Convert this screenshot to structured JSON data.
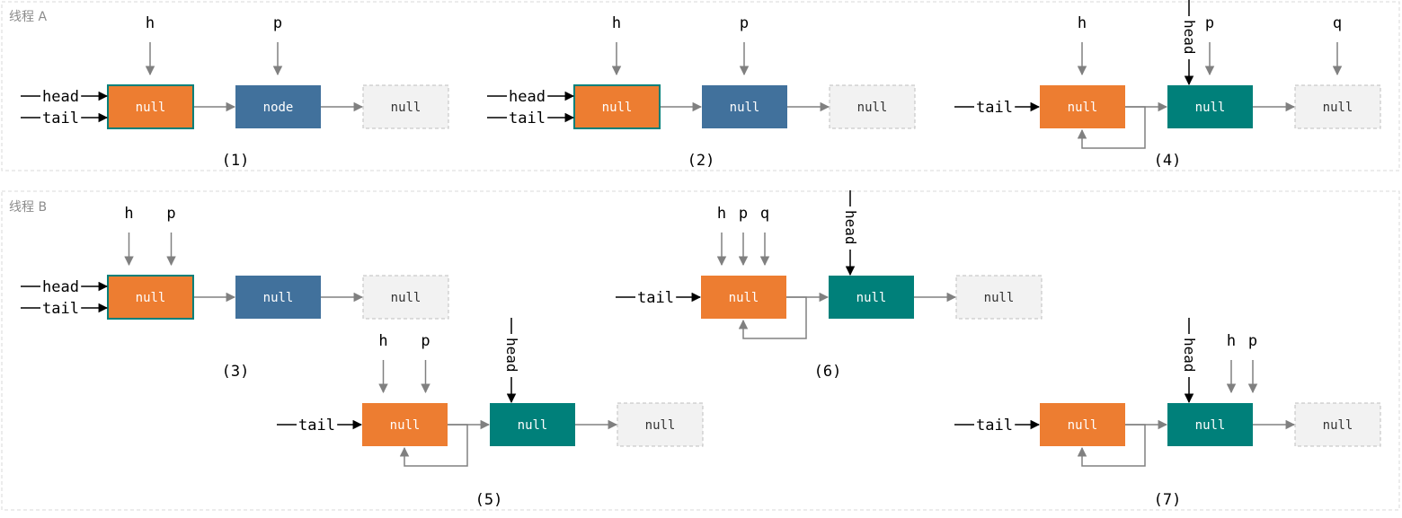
{
  "colors": {
    "orange": "#ed7d31",
    "blue": "#41719c",
    "teal": "#00807a",
    "gray_box": "#f2f2f2",
    "gray_border": "#bfbfbf",
    "connector": "#808080",
    "pointer": "#000000",
    "panel_border": "#d9d9d9",
    "label": "#8c8c8c"
  },
  "icons": [
    "pointer-arrow-icon",
    "self-loop-arrow-icon",
    "next-arrow-icon"
  ],
  "panels": [
    {
      "label": "线程 A"
    },
    {
      "label": "线程 B"
    }
  ],
  "states": [
    {
      "caption": "(1)",
      "nodes": [
        {
          "text": "null",
          "color": "orange",
          "outlined": true
        },
        {
          "text": "node",
          "color": "blue"
        },
        {
          "text": "null",
          "color": "gray"
        }
      ],
      "top_pointers": [
        {
          "text": "h",
          "node": 0
        },
        {
          "text": "p",
          "node": 1
        }
      ],
      "left_pointers": [
        "head",
        "tail"
      ],
      "vertical_head": null,
      "self_loop": false
    },
    {
      "caption": "(2)",
      "nodes": [
        {
          "text": "null",
          "color": "orange",
          "outlined": true
        },
        {
          "text": "null",
          "color": "blue"
        },
        {
          "text": "null",
          "color": "gray"
        }
      ],
      "top_pointers": [
        {
          "text": "h",
          "node": 0
        },
        {
          "text": "p",
          "node": 1
        }
      ],
      "left_pointers": [
        "head",
        "tail"
      ],
      "vertical_head": null,
      "self_loop": false
    },
    {
      "caption": "(4)",
      "nodes": [
        {
          "text": "null",
          "color": "orange"
        },
        {
          "text": "null",
          "color": "teal"
        },
        {
          "text": "null",
          "color": "gray"
        }
      ],
      "top_pointers": [
        {
          "text": "h",
          "node": 0
        },
        {
          "text": "p",
          "node": 1
        },
        {
          "text": "q",
          "node": 2
        }
      ],
      "left_pointers": [
        "tail"
      ],
      "vertical_head": "head",
      "self_loop": true
    },
    {
      "caption": "(3)",
      "nodes": [
        {
          "text": "null",
          "color": "orange",
          "outlined": true
        },
        {
          "text": "null",
          "color": "blue"
        },
        {
          "text": "null",
          "color": "gray"
        }
      ],
      "top_pointers": [
        {
          "text": "h",
          "node": 0
        },
        {
          "text": "p",
          "node": 0
        }
      ],
      "left_pointers": [
        "head",
        "tail"
      ],
      "vertical_head": null,
      "self_loop": false
    },
    {
      "caption": "(6)",
      "nodes": [
        {
          "text": "null",
          "color": "orange"
        },
        {
          "text": "null",
          "color": "teal"
        },
        {
          "text": "null",
          "color": "gray"
        }
      ],
      "top_pointers": [
        {
          "text": "h",
          "node": 0
        },
        {
          "text": "p",
          "node": 0
        },
        {
          "text": "q",
          "node": 0
        }
      ],
      "left_pointers": [
        "tail"
      ],
      "vertical_head": "head",
      "self_loop": true
    },
    {
      "caption": "(5)",
      "nodes": [
        {
          "text": "null",
          "color": "orange"
        },
        {
          "text": "null",
          "color": "teal"
        },
        {
          "text": "null",
          "color": "gray"
        }
      ],
      "top_pointers": [
        {
          "text": "h",
          "node": 0
        },
        {
          "text": "p",
          "node": 0
        }
      ],
      "left_pointers": [
        "tail"
      ],
      "vertical_head": "head",
      "self_loop": true
    },
    {
      "caption": "(7)",
      "nodes": [
        {
          "text": "null",
          "color": "orange"
        },
        {
          "text": "null",
          "color": "teal"
        },
        {
          "text": "null",
          "color": "gray"
        }
      ],
      "top_pointers": [
        {
          "text": "h",
          "node": 1
        },
        {
          "text": "p",
          "node": 1
        }
      ],
      "left_pointers": [
        "tail"
      ],
      "vertical_head": "head",
      "self_loop": true
    }
  ]
}
